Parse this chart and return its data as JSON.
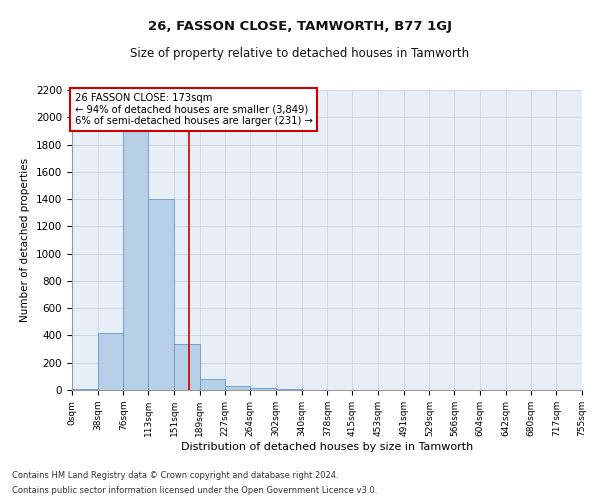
{
  "title1": "26, FASSON CLOSE, TAMWORTH, B77 1GJ",
  "title2": "Size of property relative to detached houses in Tamworth",
  "xlabel": "Distribution of detached houses by size in Tamworth",
  "ylabel": "Number of detached properties",
  "footer1": "Contains HM Land Registry data © Crown copyright and database right 2024.",
  "footer2": "Contains public sector information licensed under the Open Government Licence v3.0.",
  "annotation_line1": "26 FASSON CLOSE: 173sqm",
  "annotation_line2": "← 94% of detached houses are smaller (3,849)",
  "annotation_line3": "6% of semi-detached houses are larger (231) →",
  "property_size": 173,
  "bin_edges": [
    0,
    38,
    76,
    113,
    151,
    189,
    227,
    264,
    302,
    340,
    378,
    415,
    453,
    491,
    529,
    566,
    604,
    642,
    680,
    717,
    755
  ],
  "bar_heights": [
    10,
    420,
    1900,
    1400,
    340,
    80,
    30,
    15,
    5,
    0,
    0,
    0,
    0,
    0,
    0,
    0,
    0,
    0,
    0,
    0
  ],
  "bar_color": "#b8cfe8",
  "bar_edge_color": "#6699cc",
  "vline_color": "#cc0000",
  "annotation_box_color": "#cc0000",
  "grid_color": "#c8d4e4",
  "background_color": "#e8eef6",
  "ylim": [
    0,
    2200
  ],
  "yticks": [
    0,
    200,
    400,
    600,
    800,
    1000,
    1200,
    1400,
    1600,
    1800,
    2000,
    2200
  ]
}
